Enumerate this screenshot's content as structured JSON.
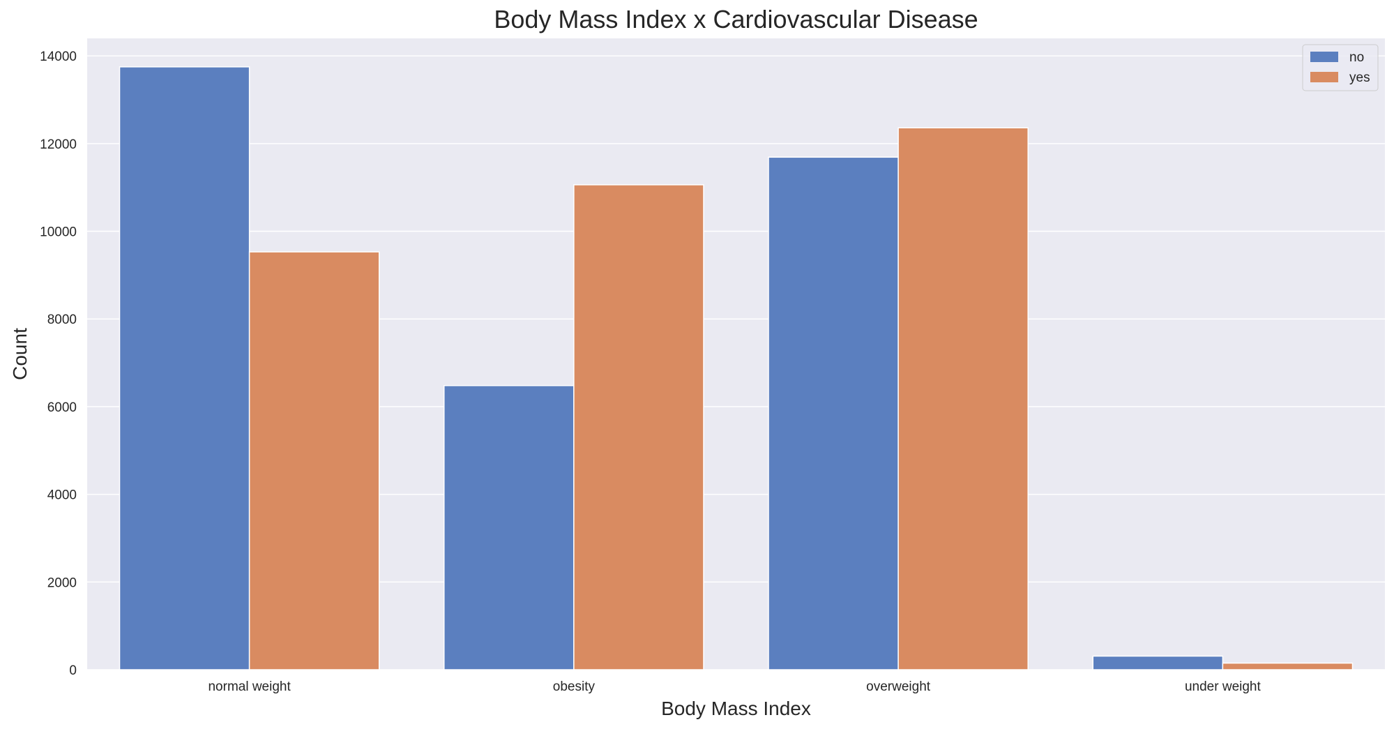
{
  "chart_data": {
    "type": "bar",
    "title": "Body Mass Index x Cardiovascular Disease",
    "xlabel": "Body Mass Index",
    "ylabel": "Count",
    "categories": [
      "normal weight",
      "obesity",
      "overweight",
      "under weight"
    ],
    "series": [
      {
        "name": "no",
        "color": "#5b7fbf",
        "values": [
          13750,
          6480,
          11690,
          310
        ]
      },
      {
        "name": "yes",
        "color": "#d98b61",
        "values": [
          9530,
          11060,
          12360,
          150
        ]
      }
    ],
    "ylim": [
      0,
      14400
    ],
    "yticks": [
      0,
      2000,
      4000,
      6000,
      8000,
      10000,
      12000,
      14000
    ],
    "grid": true,
    "legend_position": "top-right",
    "background_color": "#eaeaf2",
    "grid_color": "#ffffff"
  }
}
